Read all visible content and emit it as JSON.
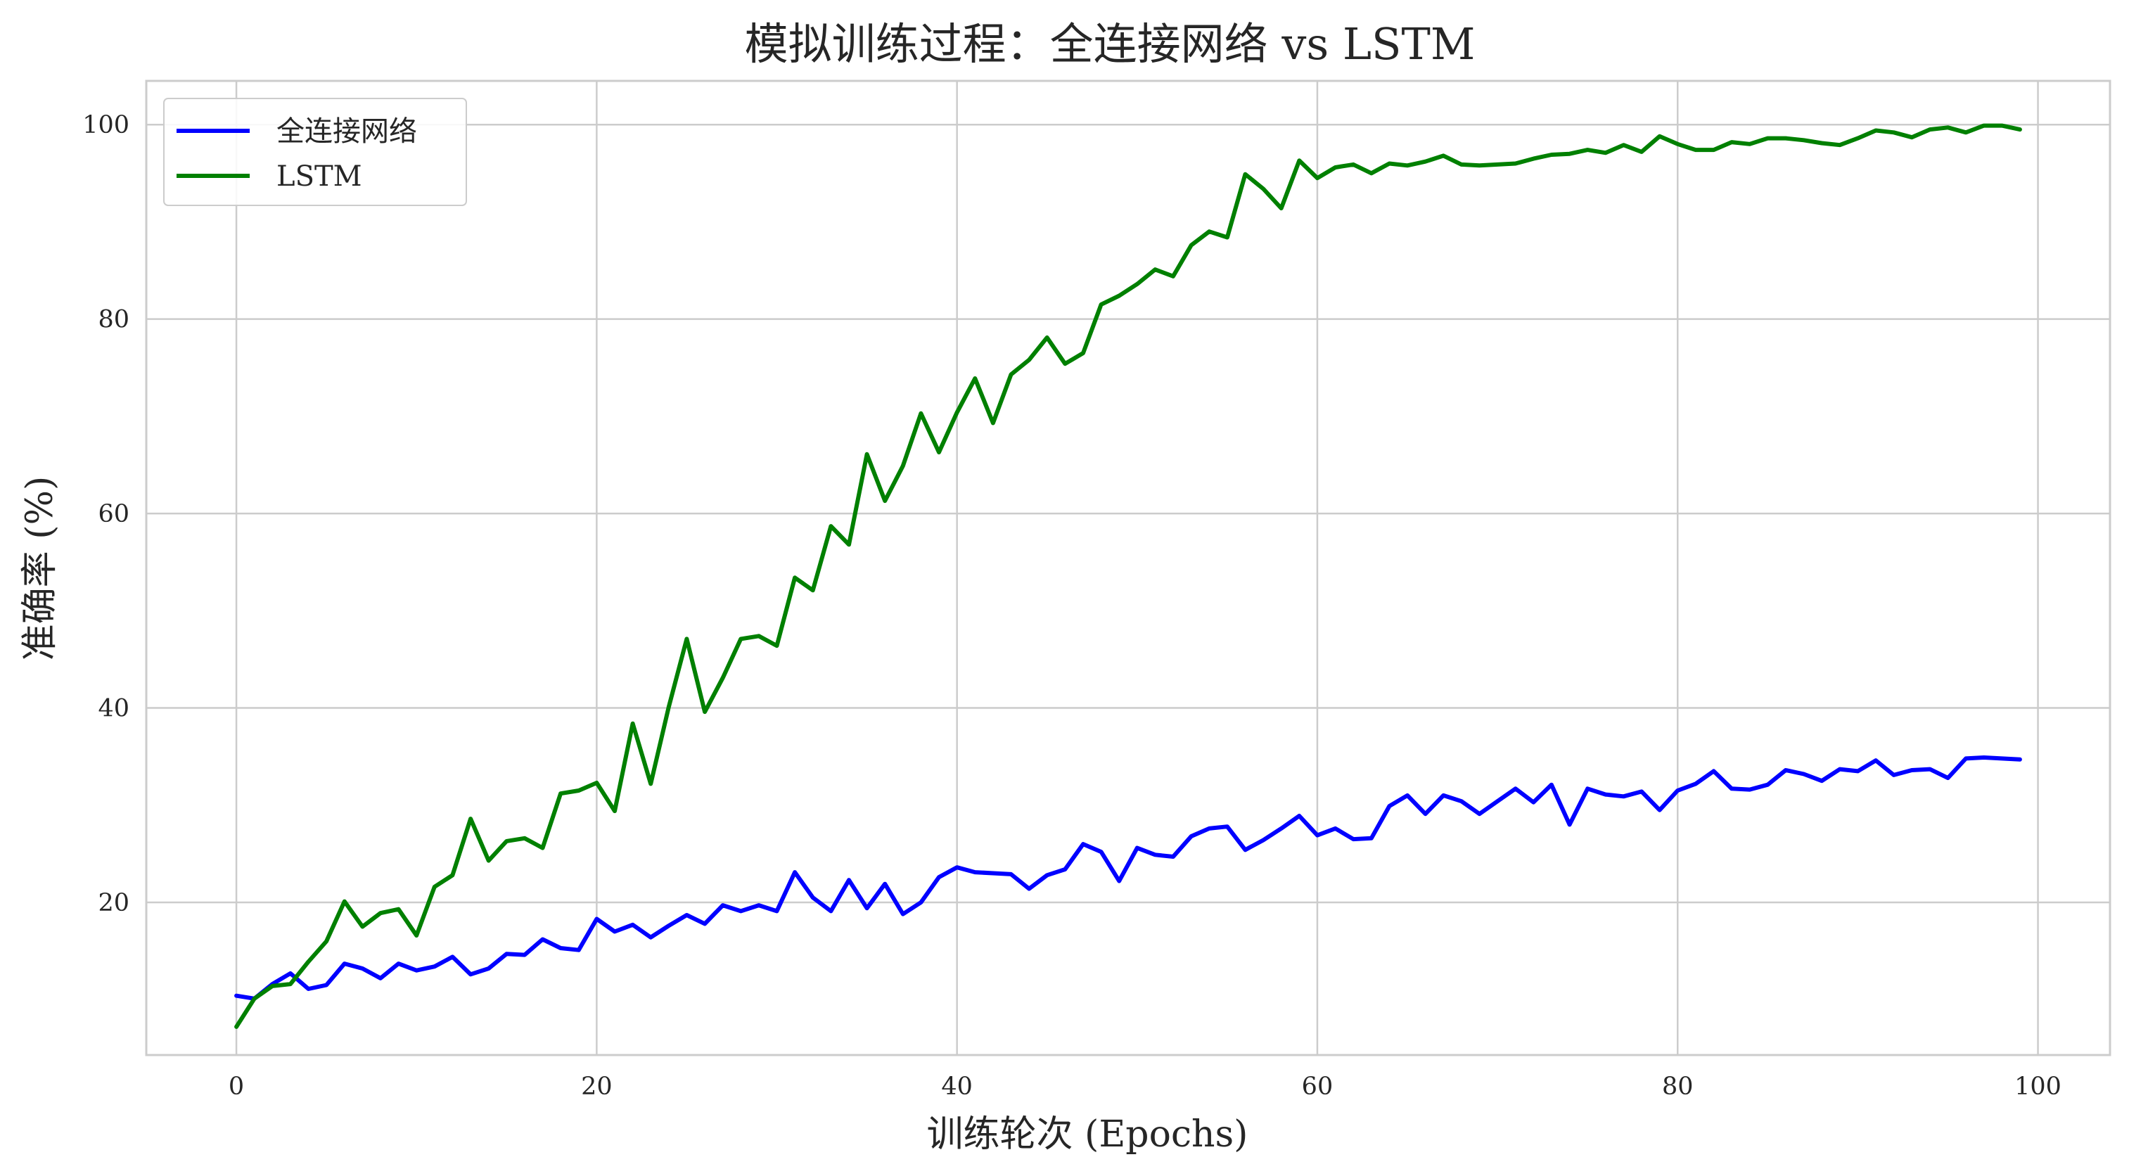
{
  "chart_data": {
    "type": "line",
    "title": "模拟训练过程：全连接网络 vs LSTM",
    "xlabel": "训练轮次 (Epochs)",
    "ylabel": "准确率 (%)",
    "xlim": [
      -5,
      104
    ],
    "ylim": [
      4.3,
      104.5
    ],
    "xticks": [
      0,
      20,
      40,
      60,
      80,
      100
    ],
    "yticks": [
      20,
      40,
      60,
      80,
      100
    ],
    "grid": true,
    "legend_position": "upper-left",
    "x": [
      0,
      1,
      2,
      3,
      4,
      5,
      6,
      7,
      8,
      9,
      10,
      11,
      12,
      13,
      14,
      15,
      16,
      17,
      18,
      19,
      20,
      21,
      22,
      23,
      24,
      25,
      26,
      27,
      28,
      29,
      30,
      31,
      32,
      33,
      34,
      35,
      36,
      37,
      38,
      39,
      40,
      41,
      42,
      43,
      44,
      45,
      46,
      47,
      48,
      49,
      50,
      51,
      52,
      53,
      54,
      55,
      56,
      57,
      58,
      59,
      60,
      61,
      62,
      63,
      64,
      65,
      66,
      67,
      68,
      69,
      70,
      71,
      72,
      73,
      74,
      75,
      76,
      77,
      78,
      79,
      80,
      81,
      82,
      83,
      84,
      85,
      86,
      87,
      88,
      89,
      90,
      91,
      92,
      93,
      94,
      95,
      96,
      97,
      98,
      99
    ],
    "series": [
      {
        "name": "全连接网络",
        "color": "#0000ff",
        "values": [
          10.4,
          10.1,
          11.6,
          12.7,
          11.1,
          11.5,
          13.7,
          13.2,
          12.2,
          13.7,
          13.0,
          13.4,
          14.4,
          12.6,
          13.2,
          14.7,
          14.6,
          16.2,
          15.3,
          15.1,
          18.3,
          17.0,
          17.7,
          16.4,
          17.6,
          18.7,
          17.8,
          19.7,
          19.1,
          19.7,
          19.1,
          23.1,
          20.5,
          19.1,
          22.3,
          19.4,
          21.9,
          18.8,
          20.0,
          22.6,
          23.6,
          23.1,
          23.0,
          22.9,
          21.4,
          22.8,
          23.4,
          26.0,
          25.2,
          22.2,
          25.6,
          24.9,
          24.7,
          26.8,
          27.6,
          27.8,
          25.4,
          26.4,
          27.6,
          28.9,
          26.9,
          27.6,
          26.5,
          26.6,
          29.9,
          31.0,
          29.1,
          31.0,
          30.4,
          29.1,
          30.4,
          31.7,
          30.3,
          32.1,
          28.0,
          31.7,
          31.1,
          30.9,
          31.4,
          29.5,
          31.5,
          32.2,
          33.5,
          31.7,
          31.6,
          32.1,
          33.6,
          33.2,
          32.5,
          33.7,
          33.5,
          34.6,
          33.1,
          33.6,
          33.7,
          32.8,
          34.8,
          34.9,
          34.8,
          34.7
        ]
      },
      {
        "name": "LSTM",
        "color": "#008000",
        "values": [
          7.2,
          10.1,
          11.4,
          11.6,
          13.9,
          16.0,
          20.1,
          17.5,
          18.9,
          19.3,
          16.6,
          21.6,
          22.8,
          28.6,
          24.3,
          26.3,
          26.6,
          25.6,
          31.2,
          31.5,
          32.3,
          29.4,
          38.4,
          32.2,
          40.1,
          47.1,
          39.6,
          43.1,
          47.1,
          47.4,
          46.4,
          53.4,
          52.1,
          58.7,
          56.8,
          66.1,
          61.3,
          64.9,
          70.3,
          66.3,
          70.4,
          73.9,
          69.3,
          74.3,
          75.8,
          78.1,
          75.4,
          76.5,
          81.5,
          82.4,
          83.6,
          85.1,
          84.4,
          87.6,
          89.0,
          88.4,
          94.9,
          93.4,
          91.4,
          96.3,
          94.5,
          95.6,
          95.9,
          95.0,
          96.0,
          95.8,
          96.2,
          96.8,
          95.9,
          95.8,
          95.9,
          96.0,
          96.5,
          96.9,
          97.0,
          97.4,
          97.1,
          97.9,
          97.2,
          98.8,
          98.0,
          97.4,
          97.4,
          98.2,
          98.0,
          98.6,
          98.6,
          98.4,
          98.1,
          97.9,
          98.6,
          99.4,
          99.2,
          98.7,
          99.5,
          99.7,
          99.2,
          99.9,
          99.9,
          99.5
        ]
      }
    ]
  }
}
